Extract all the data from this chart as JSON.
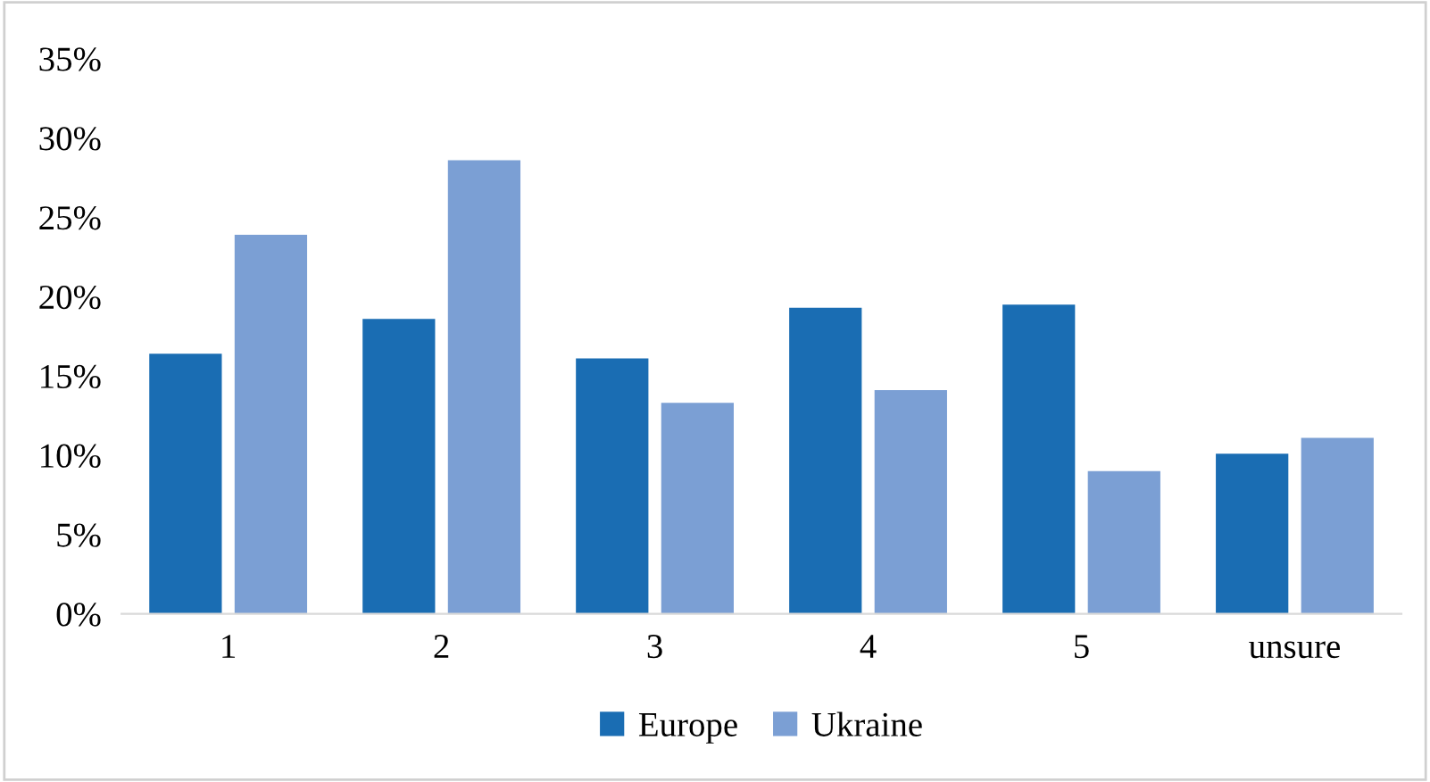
{
  "chart_data": {
    "type": "bar",
    "categories": [
      "1",
      "2",
      "3",
      "4",
      "5",
      "unsure"
    ],
    "series": [
      {
        "name": "Europe",
        "color": "#1a6db3",
        "values": [
          16.4,
          18.6,
          16.1,
          19.3,
          19.5,
          10.1
        ]
      },
      {
        "name": "Ukraine",
        "color": "#7b9fd4",
        "values": [
          23.9,
          28.6,
          13.3,
          14.1,
          9.0,
          11.1
        ]
      }
    ],
    "ylim": [
      0,
      35
    ],
    "yticks": [
      {
        "value": 0,
        "label": "0%"
      },
      {
        "value": 5,
        "label": "5%"
      },
      {
        "value": 10,
        "label": "10%"
      },
      {
        "value": 15,
        "label": "15%"
      },
      {
        "value": 20,
        "label": "20%"
      },
      {
        "value": 25,
        "label": "25%"
      },
      {
        "value": 30,
        "label": "30%"
      },
      {
        "value": 35,
        "label": "35%"
      }
    ],
    "grid": false,
    "legend": "bottom"
  }
}
